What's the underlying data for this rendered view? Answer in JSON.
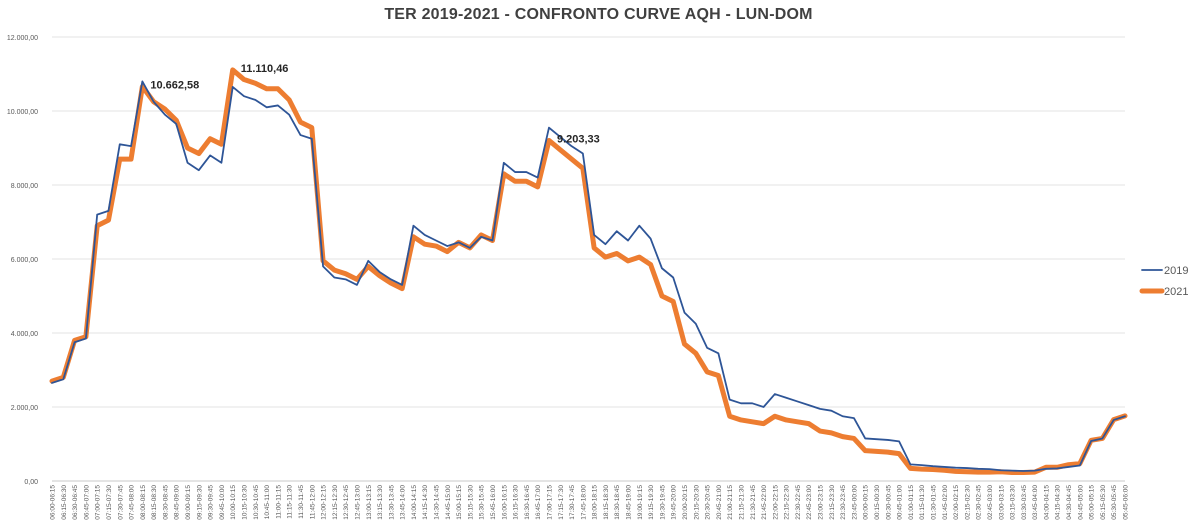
{
  "chart_data": {
    "type": "line",
    "title": "TER 2019-2021 - CONFRONTO CURVE AQH - LUN-DOM",
    "xlabel": "",
    "ylabel": "",
    "ylim": [
      0,
      12000
    ],
    "yticks": [
      0,
      2000,
      4000,
      6000,
      8000,
      10000,
      12000
    ],
    "ytick_labels": [
      "0,00",
      "2.000,00",
      "4.000,00",
      "6.000,00",
      "8.000,00",
      "10.000,00",
      "12.000,00"
    ],
    "grid": "horizontal",
    "legend_position": "right",
    "categories": [
      "06:00-06:15",
      "06:15-06:30",
      "06:30-06:45",
      "06:45-07:00",
      "07:00-07:15",
      "07:15-07:30",
      "07:30-07:45",
      "07:45-08:00",
      "08:00-08:15",
      "08:15-08:30",
      "08:30-08:45",
      "08:45-09:00",
      "09:00-09:15",
      "09:15-09:30",
      "09:30-09:45",
      "09:45-10:00",
      "10:00-10:15",
      "10:15-10:30",
      "10:30-10:45",
      "10:45-11:00",
      "11:00-11:15",
      "11:15-11:30",
      "11:30-11:45",
      "11:45-12:00",
      "12:00-12:15",
      "12:15-12:30",
      "12:30-12:45",
      "12:45-13:00",
      "13:00-13:15",
      "13:15-13:30",
      "13:30-13:45",
      "13:45-14:00",
      "14:00-14:15",
      "14:15-14:30",
      "14:30-14:45",
      "14:45-15:00",
      "15:00-15:15",
      "15:15-15:30",
      "15:30-15:45",
      "15:45-16:00",
      "16:00-16:15",
      "16:15-16:30",
      "16:30-16:45",
      "16:45-17:00",
      "17:00-17:15",
      "17:15-17:30",
      "17:30-17:45",
      "17:45-18:00",
      "18:00-18:15",
      "18:15-18:30",
      "18:30-18:45",
      "18:45-19:00",
      "19:00-19:15",
      "19:15-19:30",
      "19:30-19:45",
      "19:45-20:00",
      "20:00-20:15",
      "20:15-20:30",
      "20:30-20:45",
      "20:45-21:00",
      "21:00-21:15",
      "21:15-21:30",
      "21:30-21:45",
      "21:45-22:00",
      "22:00-22:15",
      "22:15-22:30",
      "22:30-22:45",
      "22:45-23:00",
      "23:00-23:15",
      "23:15-23:30",
      "23:30-23:45",
      "23:45-00:00",
      "00:00-00:15",
      "00:15-00:30",
      "00:30-00:45",
      "00:45-01:00",
      "01:00-01:15",
      "01:15-01:30",
      "01:30-01:45",
      "01:45-02:00",
      "02:00-02:15",
      "02:15-02:30",
      "02:30-02:45",
      "02:45-03:00",
      "03:00-03:15",
      "03:15-03:30",
      "03:30-03:45",
      "03:45-04:00",
      "04:00-04:15",
      "04:15-04:30",
      "04:30-04:45",
      "04:45-05:00",
      "05:00-05:15",
      "05:15-05:30",
      "05:30-05:45",
      "05:45-06:00"
    ],
    "series": [
      {
        "name": "2019",
        "color": "#2E5597",
        "values": [
          2650,
          2750,
          3750,
          3850,
          7200,
          7300,
          9100,
          9050,
          10800,
          10250,
          9900,
          9650,
          8600,
          8400,
          8800,
          8600,
          10650,
          10400,
          10300,
          10100,
          10150,
          9900,
          9350,
          9250,
          5800,
          5500,
          5450,
          5300,
          5950,
          5650,
          5450,
          5300,
          6900,
          6650,
          6500,
          6350,
          6450,
          6300,
          6600,
          6500,
          8600,
          8350,
          8350,
          8200,
          9550,
          9300,
          9050,
          8850,
          6650,
          6400,
          6750,
          6500,
          6900,
          6550,
          5750,
          5500,
          4550,
          4250,
          3600,
          3450,
          2200,
          2100,
          2100,
          2000,
          2350,
          2250,
          2150,
          2050,
          1950,
          1900,
          1750,
          1700,
          1150,
          1130,
          1110,
          1070,
          450,
          430,
          400,
          380,
          360,
          350,
          330,
          320,
          290,
          280,
          270,
          280,
          330,
          340,
          380,
          420,
          1080,
          1150,
          1650,
          1750
        ]
      },
      {
        "name": "2021",
        "color": "#ED7D31",
        "values": [
          2700,
          2800,
          3800,
          3900,
          6900,
          7050,
          8700,
          8700,
          10662.58,
          10250,
          10050,
          9750,
          9000,
          8850,
          9250,
          9100,
          11110.46,
          10850,
          10750,
          10600,
          10600,
          10300,
          9700,
          9550,
          5950,
          5700,
          5600,
          5450,
          5800,
          5550,
          5350,
          5200,
          6600,
          6400,
          6350,
          6200,
          6450,
          6300,
          6650,
          6500,
          8300,
          8100,
          8100,
          7950,
          9203.33,
          8950,
          8700,
          8450,
          6300,
          6050,
          6150,
          5950,
          6050,
          5850,
          5000,
          4850,
          3700,
          3450,
          2950,
          2850,
          1750,
          1650,
          1600,
          1550,
          1750,
          1650,
          1600,
          1550,
          1350,
          1300,
          1200,
          1150,
          820,
          800,
          780,
          740,
          340,
          320,
          310,
          290,
          260,
          250,
          240,
          240,
          250,
          230,
          230,
          240,
          370,
          370,
          440,
          470,
          1100,
          1150,
          1660,
          1760
        ]
      }
    ],
    "annotations": [
      {
        "label": "10.662,58",
        "category": "08:00-08:15",
        "value": 10662.58
      },
      {
        "label": "11.110,46",
        "category": "10:00-10:15",
        "value": 11110.46
      },
      {
        "label": "9.203,33",
        "category": "17:00-17:15",
        "value": 9203.33
      }
    ]
  }
}
